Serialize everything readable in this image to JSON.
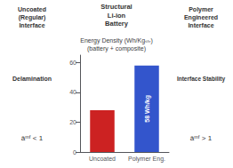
{
  "chart_data": {
    "type": "bar",
    "title": "Energy Density (Wh/Kgₛₜᵣ)\n(battery + composite)",
    "categories": [
      "Uncoated",
      "Polymer Eng."
    ],
    "values": [
      28,
      58
    ],
    "colors": [
      "#cc2222",
      "#3355cc"
    ],
    "data_labels": true,
    "value_labels": [
      null,
      "58 Wh/kg"
    ],
    "ylim": [
      0,
      65
    ],
    "yticks": [
      0,
      20,
      40,
      60
    ],
    "grid": false,
    "annotations": [
      "Structural\nLi-ion\nBattery",
      "Uncoated\n(Regular)\nInterface",
      "Polymer\nEngineered\nInterface",
      "Delamination",
      "âᵐᶠ < 1",
      "Interface Stability",
      "âᵐᶠ > 1"
    ]
  }
}
